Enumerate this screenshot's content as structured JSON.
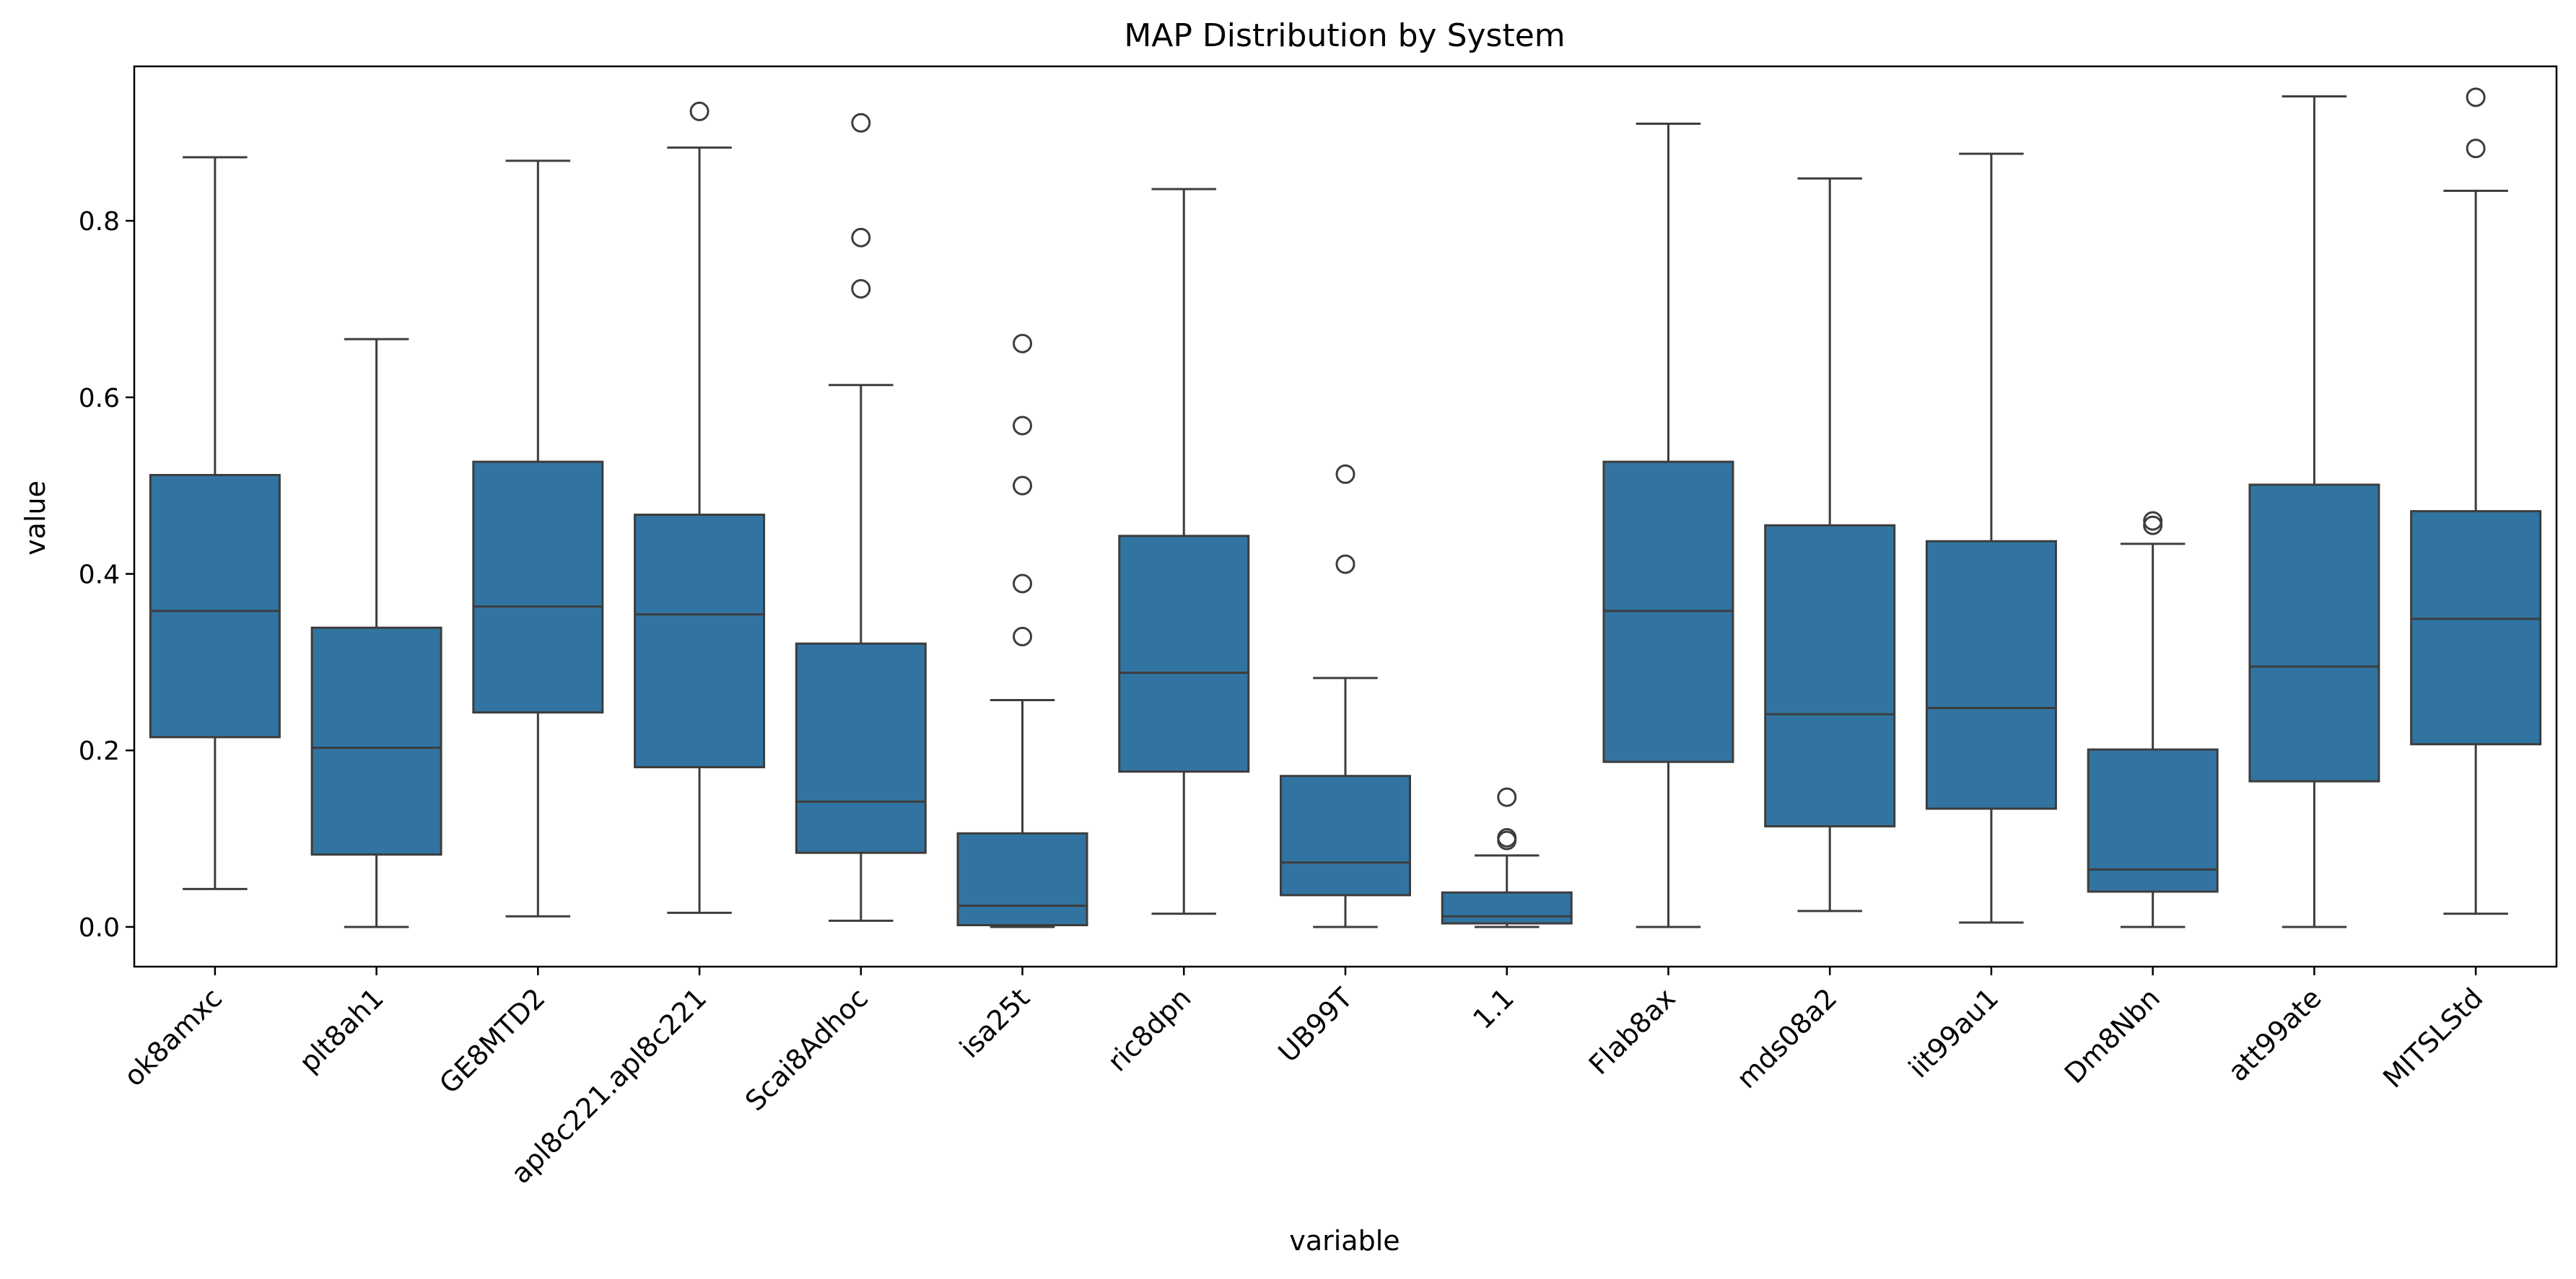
{
  "chart_data": {
    "type": "box",
    "title": "MAP Distribution by System",
    "xlabel": "variable",
    "ylabel": "value",
    "ylim": [
      -0.045,
      0.975
    ],
    "yticks": [
      0.0,
      0.2,
      0.4,
      0.6,
      0.8
    ],
    "ytick_labels": [
      "0.0",
      "0.2",
      "0.4",
      "0.6",
      "0.8"
    ],
    "grid": false,
    "legend": "none",
    "box_color": "#3274a1",
    "line_color": "#3d3d3d",
    "categories": [
      "ok8amxc",
      "plt8ah1",
      "GE8MTD2",
      "apl8c221.apl8c221",
      "Scai8Adhoc",
      "isa25t",
      "ric8dpn",
      "UB99T",
      "1.1",
      "Flab8ax",
      "mds08a2",
      "iit99au1",
      "Dm8Nbn",
      "att99ate",
      "MITSLStd"
    ],
    "boxes": [
      {
        "label": "ok8amxc",
        "whisker_low": 0.043,
        "q1": 0.215,
        "median": 0.358,
        "q3": 0.512,
        "whisker_high": 0.872,
        "outliers": []
      },
      {
        "label": "plt8ah1",
        "whisker_low": 0.0,
        "q1": 0.082,
        "median": 0.203,
        "q3": 0.339,
        "whisker_high": 0.666,
        "outliers": []
      },
      {
        "label": "GE8MTD2",
        "whisker_low": 0.012,
        "q1": 0.243,
        "median": 0.363,
        "q3": 0.527,
        "whisker_high": 0.868,
        "outliers": []
      },
      {
        "label": "apl8c221.apl8c221",
        "whisker_low": 0.016,
        "q1": 0.181,
        "median": 0.354,
        "q3": 0.467,
        "whisker_high": 0.883,
        "outliers": [
          0.924
        ]
      },
      {
        "label": "Scai8Adhoc",
        "whisker_low": 0.007,
        "q1": 0.084,
        "median": 0.142,
        "q3": 0.321,
        "whisker_high": 0.614,
        "outliers": [
          0.723,
          0.781,
          0.911
        ]
      },
      {
        "label": "isa25t",
        "whisker_low": 0.0,
        "q1": 0.002,
        "median": 0.024,
        "q3": 0.106,
        "whisker_high": 0.257,
        "outliers": [
          0.329,
          0.389,
          0.5,
          0.568,
          0.661
        ]
      },
      {
        "label": "ric8dpn",
        "whisker_low": 0.015,
        "q1": 0.176,
        "median": 0.288,
        "q3": 0.443,
        "whisker_high": 0.836,
        "outliers": []
      },
      {
        "label": "UB99T",
        "whisker_low": 0.0,
        "q1": 0.036,
        "median": 0.073,
        "q3": 0.171,
        "whisker_high": 0.282,
        "outliers": [
          0.411,
          0.513
        ]
      },
      {
        "label": "1.1",
        "whisker_low": 0.0,
        "q1": 0.004,
        "median": 0.012,
        "q3": 0.039,
        "whisker_high": 0.081,
        "outliers": [
          0.098,
          0.101,
          0.147
        ]
      },
      {
        "label": "Flab8ax",
        "whisker_low": 0.0,
        "q1": 0.187,
        "median": 0.358,
        "q3": 0.527,
        "whisker_high": 0.91,
        "outliers": []
      },
      {
        "label": "mds08a2",
        "whisker_low": 0.018,
        "q1": 0.114,
        "median": 0.241,
        "q3": 0.455,
        "whisker_high": 0.848,
        "outliers": []
      },
      {
        "label": "iit99au1",
        "whisker_low": 0.005,
        "q1": 0.134,
        "median": 0.248,
        "q3": 0.437,
        "whisker_high": 0.876,
        "outliers": []
      },
      {
        "label": "Dm8Nbn",
        "whisker_low": 0.0,
        "q1": 0.04,
        "median": 0.065,
        "q3": 0.201,
        "whisker_high": 0.434,
        "outliers": [
          0.455,
          0.46
        ]
      },
      {
        "label": "att99ate",
        "whisker_low": 0.0,
        "q1": 0.165,
        "median": 0.295,
        "q3": 0.501,
        "whisker_high": 0.941,
        "outliers": []
      },
      {
        "label": "MITSLStd",
        "whisker_low": 0.015,
        "q1": 0.207,
        "median": 0.349,
        "q3": 0.471,
        "whisker_high": 0.834,
        "outliers": [
          0.882,
          0.94
        ]
      }
    ]
  }
}
